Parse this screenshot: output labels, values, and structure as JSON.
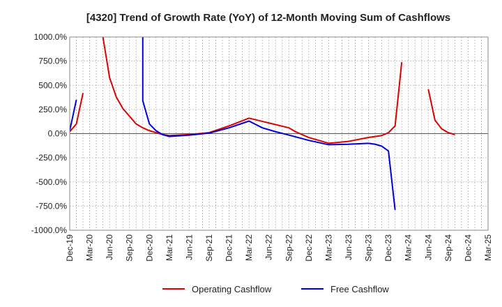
{
  "chart_data": {
    "type": "line",
    "title": "[4320]  Trend of Growth Rate (YoY) of 12-Month Moving Sum of Cashflows",
    "xlabel": "",
    "ylabel": "",
    "ylim": [
      -1000,
      1000
    ],
    "yticks": [
      1000,
      750,
      500,
      250,
      0,
      -250,
      -500,
      -750,
      -1000
    ],
    "ytick_labels": [
      "1000.0%",
      "750.0%",
      "500.0%",
      "250.0%",
      "0.0%",
      "-250.0%",
      "-500.0%",
      "-750.0%",
      "-1000.0%"
    ],
    "xlim": [
      "2019-12",
      "2025-03"
    ],
    "xtick_labels": [
      "Dec-19",
      "Mar-20",
      "Jun-20",
      "Sep-20",
      "Dec-20",
      "Mar-21",
      "Jun-21",
      "Sep-21",
      "Dec-21",
      "Mar-22",
      "Jun-22",
      "Sep-22",
      "Dec-22",
      "Mar-23",
      "Jun-23",
      "Sep-23",
      "Dec-23",
      "Mar-24",
      "Jun-24",
      "Sep-24",
      "Dec-24",
      "Mar-25"
    ],
    "grid": true,
    "legend_position": "bottom",
    "series": [
      {
        "name": "Operating Cashflow",
        "color": "#dd0000",
        "points": [
          [
            "2019-12",
            20
          ],
          [
            "2020-01",
            100
          ],
          [
            "2020-02",
            420
          ],
          [
            "2020-03",
            null
          ],
          [
            "2020-05",
            1000
          ],
          [
            "2020-06",
            580
          ],
          [
            "2020-07",
            380
          ],
          [
            "2020-08",
            260
          ],
          [
            "2020-09",
            180
          ],
          [
            "2020-10",
            100
          ],
          [
            "2020-11",
            60
          ],
          [
            "2020-12",
            30
          ],
          [
            "2021-01",
            10
          ],
          [
            "2021-02",
            -10
          ],
          [
            "2021-03",
            -20
          ],
          [
            "2021-06",
            -10
          ],
          [
            "2021-09",
            10
          ],
          [
            "2021-12",
            80
          ],
          [
            "2022-03",
            160
          ],
          [
            "2022-06",
            110
          ],
          [
            "2022-09",
            60
          ],
          [
            "2022-10",
            20
          ],
          [
            "2022-11",
            -10
          ],
          [
            "2022-12",
            -40
          ],
          [
            "2023-03",
            -100
          ],
          [
            "2023-06",
            -80
          ],
          [
            "2023-09",
            -40
          ],
          [
            "2023-11",
            -20
          ],
          [
            "2023-12",
            10
          ],
          [
            "2024-01",
            80
          ],
          [
            "2024-02",
            740
          ],
          [
            "2024-03",
            null
          ],
          [
            "2024-06",
            460
          ],
          [
            "2024-07",
            140
          ],
          [
            "2024-08",
            50
          ],
          [
            "2024-09",
            10
          ],
          [
            "2024-10",
            -10
          ]
        ]
      },
      {
        "name": "Free Cashflow",
        "color": "#0000dd",
        "points": [
          [
            "2019-12",
            30
          ],
          [
            "2020-01",
            350
          ],
          [
            "2020-02",
            null
          ],
          [
            "2020-11",
            1000
          ],
          [
            "2020-11",
            340
          ],
          [
            "2020-12",
            100
          ],
          [
            "2021-01",
            30
          ],
          [
            "2021-02",
            -10
          ],
          [
            "2021-03",
            -30
          ],
          [
            "2021-06",
            -15
          ],
          [
            "2021-09",
            5
          ],
          [
            "2021-12",
            60
          ],
          [
            "2022-03",
            130
          ],
          [
            "2022-05",
            60
          ],
          [
            "2022-07",
            20
          ],
          [
            "2022-09",
            -15
          ],
          [
            "2022-12",
            -70
          ],
          [
            "2023-03",
            -115
          ],
          [
            "2023-06",
            -110
          ],
          [
            "2023-09",
            -100
          ],
          [
            "2023-10",
            -110
          ],
          [
            "2023-11",
            -130
          ],
          [
            "2023-12",
            -180
          ],
          [
            "2024-01",
            -790
          ]
        ]
      }
    ]
  }
}
